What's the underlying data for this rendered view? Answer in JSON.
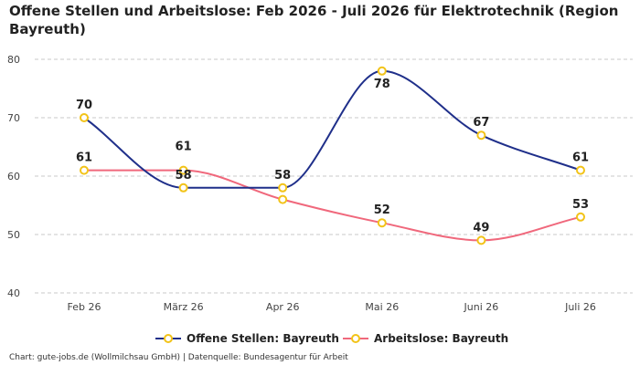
{
  "chart_data": {
    "type": "line",
    "title": "Offene Stellen und Arbeitslose: Feb 2026 - Juli 2026 für Elektrotechnik (Region Bayreuth)",
    "categories": [
      "Feb 26",
      "März 26",
      "Apr 26",
      "Mai 26",
      "Juni 26",
      "Juli 26"
    ],
    "ylim": [
      40,
      80
    ],
    "yticks": [
      40,
      50,
      60,
      70,
      80
    ],
    "grid": true,
    "legend_position": "bottom",
    "series": [
      {
        "name": "Offene Stellen: Bayreuth",
        "values": [
          70,
          58,
          58,
          78,
          67,
          61
        ],
        "color": "#1f2f8a"
      },
      {
        "name": "Arbeitslose: Bayreuth",
        "values": [
          61,
          61,
          56,
          52,
          49,
          53
        ],
        "color": "#f0687c"
      }
    ],
    "marker_color": "#f2c318"
  },
  "footer": "Chart: gute-jobs.de (Wollmilchsau GmbH) | Datenquelle: Bundesagentur für Arbeit"
}
